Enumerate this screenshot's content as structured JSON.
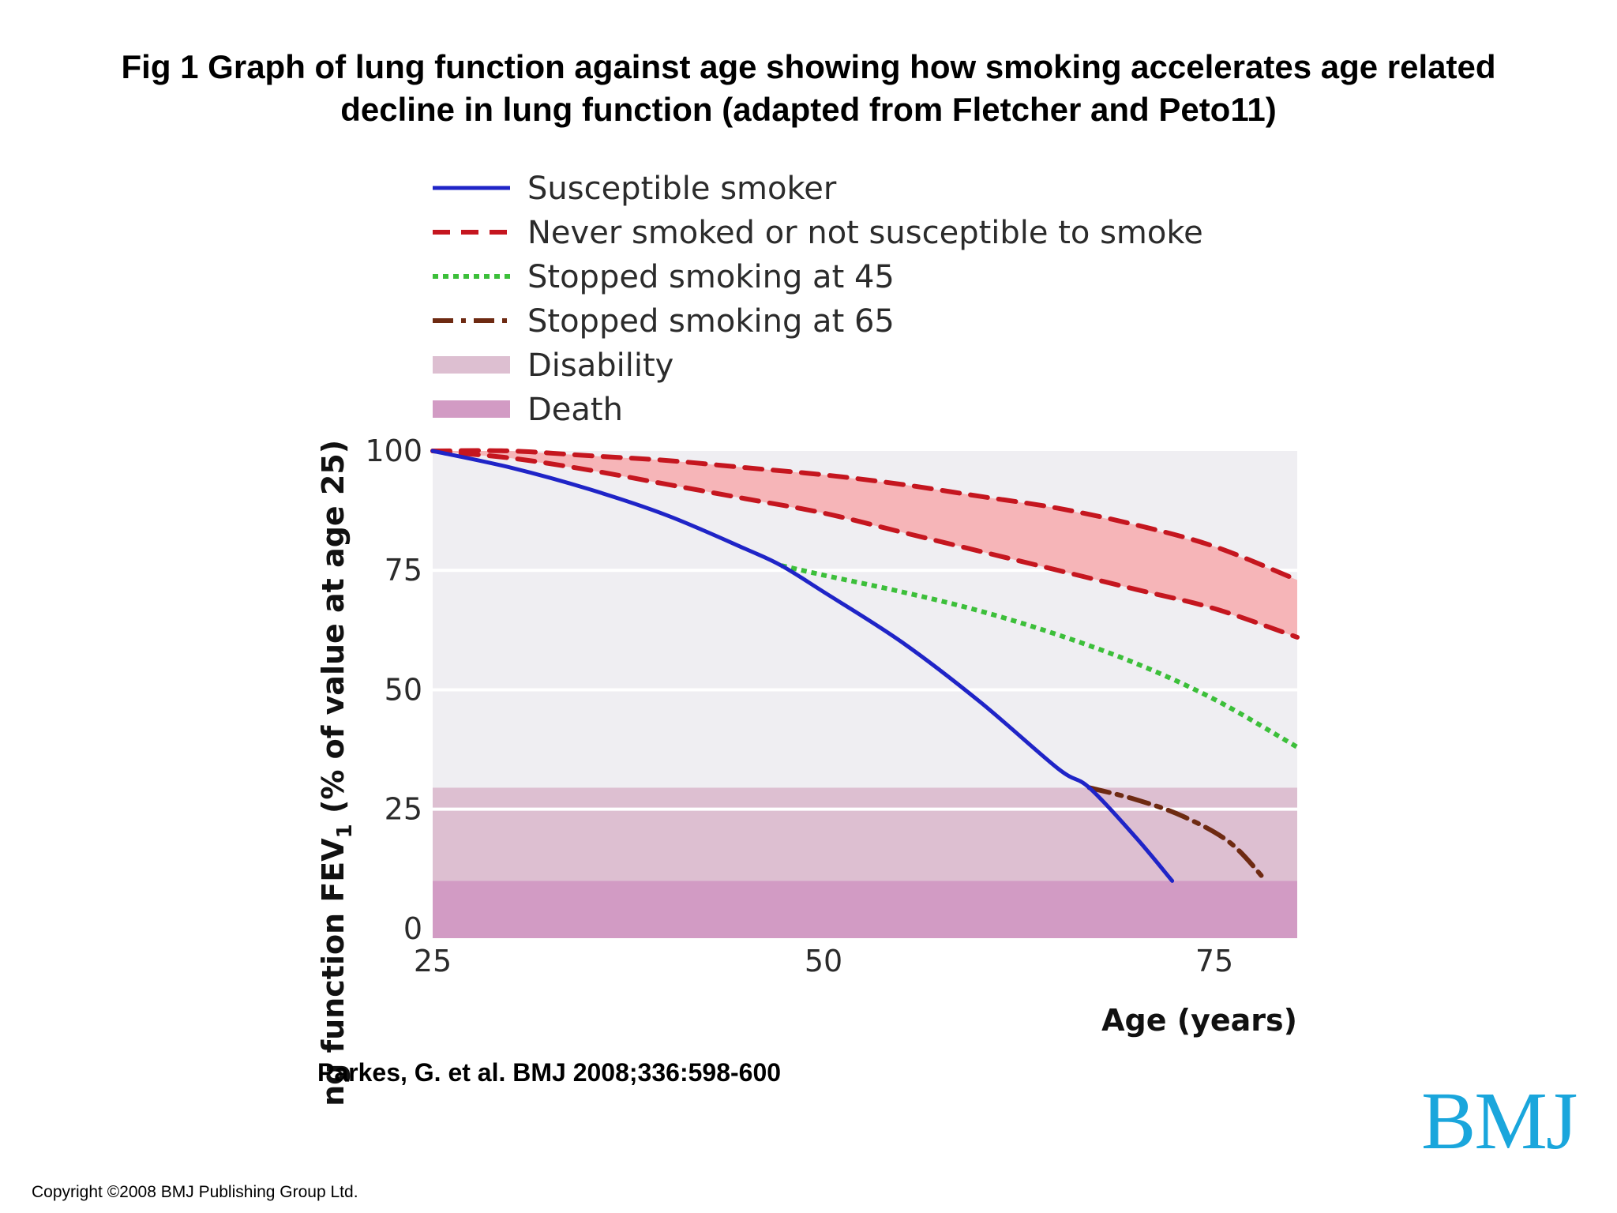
{
  "figure": {
    "title_line1": "Fig 1 Graph of lung function against age showing how smoking accelerates age related",
    "title_line2": "decline in lung function (adapted from Fletcher and Peto11)",
    "citation": "Parkes, G. et al. BMJ 2008;336:598-600",
    "logo": "BMJ",
    "copyright": "Copyright ©2008 BMJ Publishing Group Ltd."
  },
  "chart_data": {
    "type": "line",
    "title": "",
    "xlabel": "Age (years)",
    "ylabel_main": "Lung function FEV",
    "ylabel_sub": "1",
    "ylabel_tail": " (% of value at age 25)",
    "xlim": [
      25,
      80.3
    ],
    "ylim": [
      -2,
      100
    ],
    "x_ticks": [
      25,
      50,
      75
    ],
    "y_ticks": [
      0,
      25,
      50,
      75,
      100
    ],
    "grid_lines_y": [
      25,
      50,
      75
    ],
    "legend_position": "top",
    "colors": {
      "plot_bg": "#efeef2",
      "band_fill": "#f6b5b8",
      "disability": "#ddbfd1",
      "death": "#d29bc4",
      "susceptible": "#1f24c7",
      "never": "#c5161f",
      "stopped45": "#3cbf3a",
      "stopped65": "#6e2a12"
    },
    "regions": [
      {
        "name": "Disability",
        "y_from": 10,
        "y_to": 29.5
      },
      {
        "name": "Death",
        "y_from": -2,
        "y_to": 10
      }
    ],
    "series": [
      {
        "name": "Susceptible smoker",
        "style": "solid",
        "color_key": "susceptible",
        "x": [
          25,
          30,
          35,
          40,
          45,
          47.3,
          50,
          55,
          60,
          65,
          67,
          70,
          72.3
        ],
        "y": [
          100,
          96.5,
          92,
          86.5,
          79.5,
          76,
          70.5,
          60,
          47.5,
          33.5,
          29.5,
          19,
          10
        ]
      },
      {
        "name": "Never smoked or not susceptible to smoke",
        "style": "dashed",
        "color_key": "never",
        "x": [
          25,
          30,
          35,
          40,
          45,
          50,
          55,
          60,
          65,
          70,
          75,
          80.3
        ],
        "y": [
          100,
          100,
          99,
          98,
          96.5,
          95,
          93,
          90.5,
          88,
          84.5,
          80,
          73
        ]
      },
      {
        "name": "Never smoked (lower bound)",
        "style": "dashed",
        "color_key": "never",
        "legend": false,
        "x": [
          25,
          30,
          35,
          40,
          45,
          50,
          55,
          60,
          65,
          70,
          75,
          80.3
        ],
        "y": [
          100,
          98.5,
          96,
          93,
          90,
          87,
          83,
          79,
          75,
          71,
          67,
          61
        ]
      },
      {
        "name": "Stopped smoking at 45",
        "style": "dotted",
        "color_key": "stopped45",
        "x": [
          47.3,
          50,
          55,
          60,
          65,
          70,
          75,
          80.3
        ],
        "y": [
          76,
          74,
          70.5,
          66.5,
          61.5,
          55.5,
          48,
          38
        ]
      },
      {
        "name": "Stopped smoking at 65",
        "style": "dashdot",
        "color_key": "stopped65",
        "x": [
          67,
          70,
          73,
          76,
          78.3
        ],
        "y": [
          29.5,
          27,
          23.5,
          18,
          10
        ]
      }
    ],
    "legend": [
      {
        "label": "Susceptible smoker",
        "kind": "line",
        "style": "solid",
        "color_key": "susceptible"
      },
      {
        "label": "Never smoked or not susceptible to smoke",
        "kind": "line",
        "style": "dashed",
        "color_key": "never"
      },
      {
        "label": "Stopped smoking at 45",
        "kind": "line",
        "style": "dotted",
        "color_key": "stopped45"
      },
      {
        "label": "Stopped smoking at 65",
        "kind": "line",
        "style": "dashdot",
        "color_key": "stopped65"
      },
      {
        "label": "Disability",
        "kind": "box",
        "color_key": "disability"
      },
      {
        "label": "Death",
        "kind": "box",
        "color_key": "death"
      }
    ]
  }
}
